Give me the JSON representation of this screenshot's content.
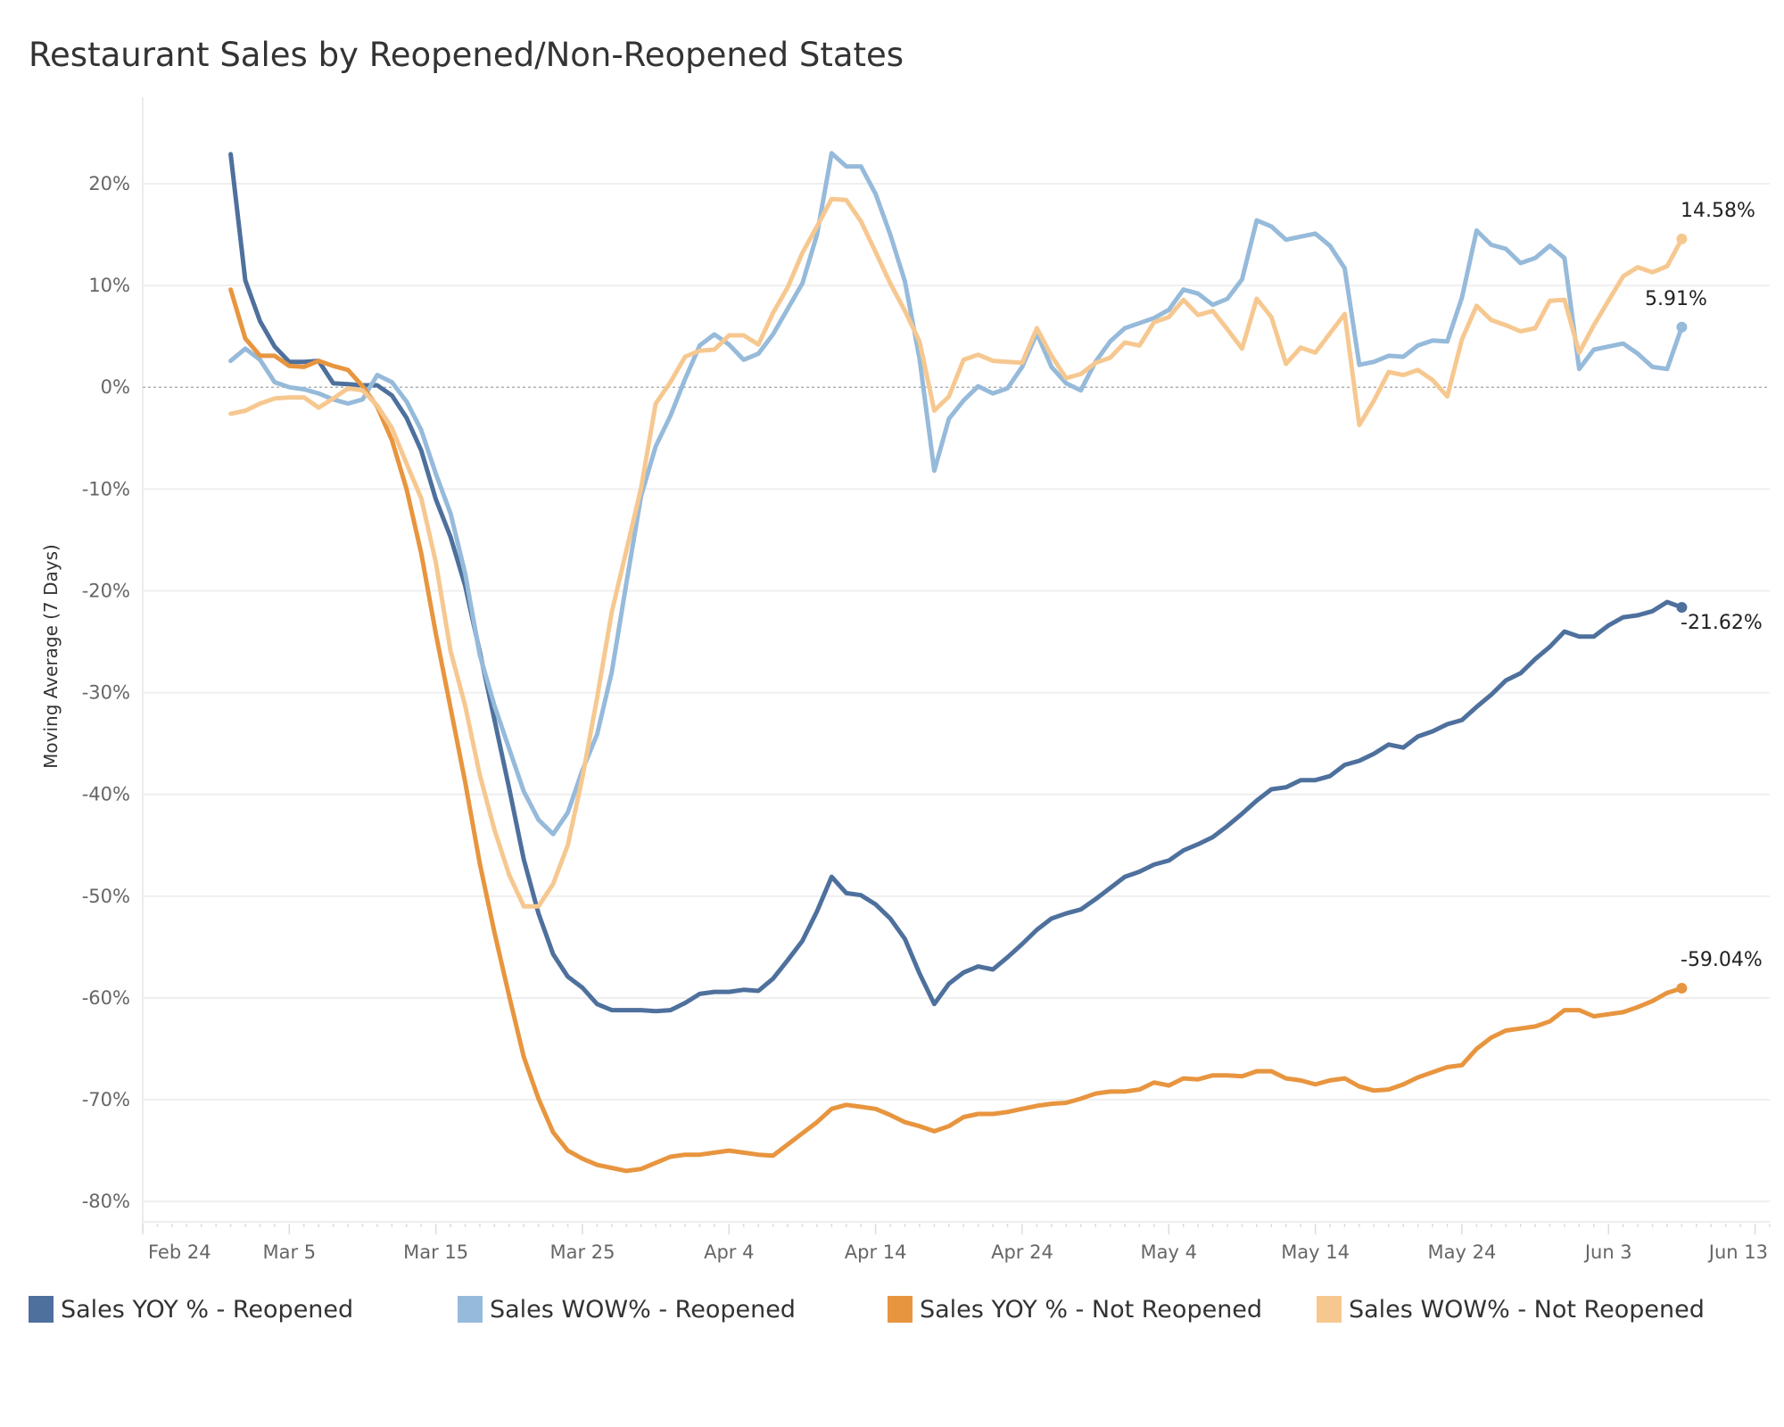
{
  "chart_data": {
    "type": "line",
    "title": "Restaurant Sales by Reopened/Non-Reopened States",
    "xlabel": "",
    "ylabel": "Moving Average (7 Days)",
    "ylim": [
      -82,
      28.5
    ],
    "xlim": [
      "Feb 24",
      "Jun 14"
    ],
    "grid": true,
    "zero_line": "dashed",
    "legend_position": "bottom",
    "y_ticks": [
      "20%",
      "10%",
      "0%",
      "-10%",
      "-20%",
      "-30%",
      "-40%",
      "-50%",
      "-60%",
      "-70%",
      "-80%"
    ],
    "y_tick_values": [
      20,
      10,
      0,
      -10,
      -20,
      -30,
      -40,
      -50,
      -60,
      -70,
      -80
    ],
    "x_ticks": [
      "Feb 24",
      "Mar 5",
      "Mar 15",
      "Mar 25",
      "Apr 4",
      "Apr 14",
      "Apr 24",
      "May 4",
      "May 14",
      "May 24",
      "Jun 3",
      "Jun 13"
    ],
    "x": [
      "Mar 1",
      "Mar 2",
      "Mar 3",
      "Mar 4",
      "Mar 5",
      "Mar 6",
      "Mar 7",
      "Mar 8",
      "Mar 9",
      "Mar 10",
      "Mar 11",
      "Mar 12",
      "Mar 13",
      "Mar 14",
      "Mar 15",
      "Mar 16",
      "Mar 17",
      "Mar 18",
      "Mar 19",
      "Mar 20",
      "Mar 21",
      "Mar 22",
      "Mar 23",
      "Mar 24",
      "Mar 25",
      "Mar 26",
      "Mar 27",
      "Mar 28",
      "Mar 29",
      "Mar 30",
      "Mar 31",
      "Apr 1",
      "Apr 2",
      "Apr 3",
      "Apr 4",
      "Apr 5",
      "Apr 6",
      "Apr 7",
      "Apr 8",
      "Apr 9",
      "Apr 10",
      "Apr 11",
      "Apr 12",
      "Apr 13",
      "Apr 14",
      "Apr 15",
      "Apr 16",
      "Apr 17",
      "Apr 18",
      "Apr 19",
      "Apr 20",
      "Apr 21",
      "Apr 22",
      "Apr 23",
      "Apr 24",
      "Apr 25",
      "Apr 26",
      "Apr 27",
      "Apr 28",
      "Apr 29",
      "Apr 30",
      "May 1",
      "May 2",
      "May 3",
      "May 4",
      "May 5",
      "May 6",
      "May 7",
      "May 8",
      "May 9",
      "May 10",
      "May 11",
      "May 12",
      "May 13",
      "May 14",
      "May 15",
      "May 16",
      "May 17",
      "May 18",
      "May 19",
      "May 20",
      "May 21",
      "May 22",
      "May 23",
      "May 24",
      "May 25",
      "May 26",
      "May 27",
      "May 28",
      "May 29",
      "May 30",
      "May 31",
      "Jun 1",
      "Jun 2",
      "Jun 3",
      "Jun 4",
      "Jun 5",
      "Jun 6",
      "Jun 7",
      "Jun 8"
    ],
    "series": [
      {
        "name": "Sales YOY % - Reopened",
        "color": "#4e709d",
        "end_label": "-21.62%",
        "values": [
          22.9,
          10.5,
          6.5,
          4.0,
          2.5,
          2.5,
          2.6,
          0.4,
          0.3,
          0.2,
          0.2,
          -0.8,
          -3.0,
          -6.2,
          -11.0,
          -14.7,
          -19.5,
          -26.0,
          -32.7,
          -39.4,
          -46.4,
          -51.7,
          -55.7,
          -57.9,
          -59.0,
          -60.6,
          -61.2,
          -61.2,
          -61.2,
          -61.3,
          -61.2,
          -60.5,
          -59.6,
          -59.4,
          -59.4,
          -59.2,
          -59.3,
          -58.1,
          -56.3,
          -54.4,
          -51.5,
          -48.1,
          -49.7,
          -49.9,
          -50.8,
          -52.2,
          -54.2,
          -57.6,
          -60.6,
          -58.6,
          -57.5,
          -56.9,
          -57.2,
          -56.0,
          -54.7,
          -53.3,
          -52.2,
          -51.7,
          -51.3,
          -50.3,
          -49.2,
          -48.1,
          -47.6,
          -46.9,
          -46.5,
          -45.5,
          -44.9,
          -44.2,
          -43.1,
          -41.9,
          -40.6,
          -39.5,
          -39.3,
          -38.6,
          -38.6,
          -38.2,
          -37.1,
          -36.7,
          -36.0,
          -35.1,
          -35.4,
          -34.3,
          -33.8,
          -33.1,
          -32.7,
          -31.4,
          -30.2,
          -28.8,
          -28.1,
          -26.7,
          -25.5,
          -24.0,
          -24.5,
          -24.5,
          -23.4,
          -22.6,
          -22.4,
          -22.0,
          -21.1,
          -21.62
        ]
      },
      {
        "name": "Sales WOW% - Reopened",
        "color": "#96bada",
        "end_label": "5.91%",
        "values": [
          2.6,
          3.8,
          2.7,
          0.5,
          0.0,
          -0.2,
          -0.6,
          -1.2,
          -1.6,
          -1.2,
          1.2,
          0.5,
          -1.4,
          -4.2,
          -8.5,
          -12.4,
          -18.3,
          -26.3,
          -31.3,
          -35.5,
          -39.7,
          -42.5,
          -43.9,
          -41.8,
          -37.6,
          -34.1,
          -28.0,
          -19.2,
          -10.7,
          -5.8,
          -2.8,
          0.8,
          4.1,
          5.2,
          4.2,
          2.7,
          3.3,
          5.2,
          7.7,
          10.2,
          15.0,
          23.0,
          21.7,
          21.7,
          19.0,
          15.0,
          10.4,
          2.8,
          -8.2,
          -3.1,
          -1.3,
          0.1,
          -0.6,
          -0.1,
          2.0,
          5.3,
          2.0,
          0.4,
          -0.3,
          2.5,
          4.5,
          5.8,
          6.3,
          6.8,
          7.6,
          9.6,
          9.2,
          8.1,
          8.7,
          10.6,
          16.4,
          15.8,
          14.5,
          14.8,
          15.1,
          13.9,
          11.7,
          2.2,
          2.5,
          3.1,
          3.0,
          4.1,
          4.6,
          4.5,
          8.8,
          15.4,
          14.0,
          13.6,
          12.2,
          12.7,
          13.9,
          12.7,
          1.8,
          3.7,
          4.0,
          4.3,
          3.3,
          2.0,
          1.8,
          5.91
        ]
      },
      {
        "name": "Sales YOY % - Not Reopened",
        "color": "#e8953f",
        "end_label": "-59.04%",
        "values": [
          9.6,
          4.8,
          3.1,
          3.1,
          2.1,
          2.0,
          2.6,
          2.1,
          1.7,
          0.1,
          -1.9,
          -5.2,
          -10.0,
          -16.3,
          -24.2,
          -31.5,
          -38.8,
          -46.8,
          -53.6,
          -59.8,
          -65.8,
          -69.9,
          -73.2,
          -75.0,
          -75.8,
          -76.4,
          -76.7,
          -77.0,
          -76.8,
          -76.2,
          -75.6,
          -75.4,
          -75.4,
          -75.2,
          -75.0,
          -75.2,
          -75.4,
          -75.5,
          -74.4,
          -73.3,
          -72.2,
          -70.9,
          -70.5,
          -70.7,
          -70.9,
          -71.5,
          -72.2,
          -72.6,
          -73.1,
          -72.6,
          -71.7,
          -71.4,
          -71.4,
          -71.2,
          -70.9,
          -70.6,
          -70.4,
          -70.3,
          -69.9,
          -69.4,
          -69.2,
          -69.2,
          -69.0,
          -68.3,
          -68.6,
          -67.9,
          -68.0,
          -67.6,
          -67.6,
          -67.7,
          -67.2,
          -67.2,
          -67.9,
          -68.1,
          -68.5,
          -68.1,
          -67.9,
          -68.7,
          -69.1,
          -69.0,
          -68.5,
          -67.8,
          -67.3,
          -66.8,
          -66.6,
          -65.0,
          -63.9,
          -63.2,
          -63.0,
          -62.8,
          -62.3,
          -61.2,
          -61.2,
          -61.8,
          -61.6,
          -61.4,
          -60.9,
          -60.3,
          -59.5,
          -59.04
        ]
      },
      {
        "name": "Sales WOW% - Not Reopened",
        "color": "#f6c890",
        "end_label": "14.58%",
        "values": [
          -2.6,
          -2.3,
          -1.6,
          -1.1,
          -1.0,
          -1.0,
          -2.0,
          -1.1,
          -0.1,
          -0.3,
          -1.8,
          -4.0,
          -7.5,
          -10.9,
          -17.2,
          -25.9,
          -31.3,
          -38.1,
          -43.5,
          -47.9,
          -51.0,
          -51.0,
          -48.8,
          -45.0,
          -38.3,
          -30.5,
          -22.1,
          -16.0,
          -9.9,
          -1.6,
          0.5,
          3.0,
          3.6,
          3.7,
          5.1,
          5.1,
          4.2,
          7.3,
          9.8,
          13.2,
          15.8,
          18.5,
          18.4,
          16.3,
          13.3,
          10.2,
          7.5,
          4.5,
          -2.3,
          -0.9,
          2.7,
          3.2,
          2.6,
          2.5,
          2.4,
          5.8,
          3.1,
          0.9,
          1.3,
          2.4,
          2.9,
          4.4,
          4.1,
          6.4,
          6.9,
          8.6,
          7.1,
          7.5,
          5.7,
          3.8,
          8.7,
          6.9,
          2.3,
          3.9,
          3.4,
          5.3,
          7.2,
          -3.7,
          -1.3,
          1.5,
          1.2,
          1.7,
          0.7,
          -0.9,
          4.7,
          8.0,
          6.6,
          6.1,
          5.5,
          5.8,
          8.5,
          8.6,
          3.4,
          6.1,
          8.5,
          10.9,
          11.8,
          11.3,
          11.9,
          14.58
        ]
      }
    ]
  }
}
